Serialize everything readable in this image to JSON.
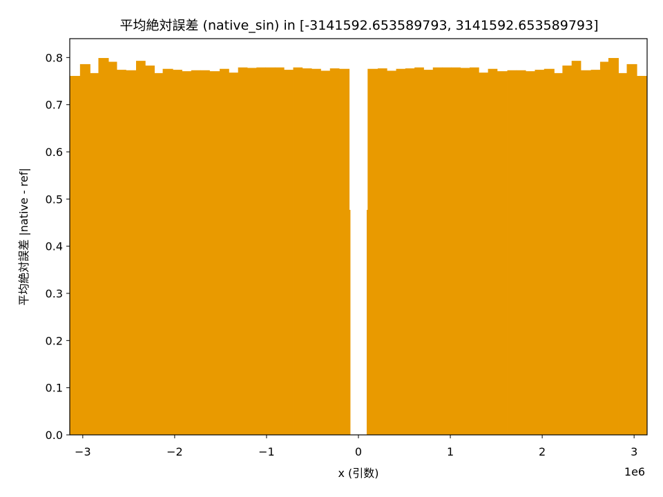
{
  "chart_data": {
    "type": "bar",
    "title": "平均絶対誤差 (native_sin) in [-3141592.653589793, 3141592.653589793]",
    "xlabel": "x (引数)",
    "ylabel": "平均絶対誤差 |native - ref|",
    "x_offset_label": "1e6",
    "bar_color": "#e99a00",
    "xlim": [
      -3.14159,
      3.14159
    ],
    "ylim": [
      0,
      0.84
    ],
    "x_unit_scale": 1000000,
    "x_ticks": [
      -3,
      -2,
      -1,
      0,
      1,
      2,
      3
    ],
    "x_tick_labels": [
      "−3",
      "−2",
      "−1",
      "0",
      "1",
      "2",
      "3"
    ],
    "y_ticks": [
      0.0,
      0.1,
      0.2,
      0.3,
      0.4,
      0.5,
      0.6,
      0.7,
      0.8
    ],
    "y_tick_labels": [
      "0.0",
      "0.1",
      "0.2",
      "0.3",
      "0.4",
      "0.5",
      "0.6",
      "0.7",
      "0.8"
    ],
    "bin_edges": [
      -3.14159,
      -3.03,
      -2.92,
      -2.83,
      -2.72,
      -2.63,
      -2.53,
      -2.42,
      -2.32,
      -2.22,
      -2.13,
      -2.02,
      -1.92,
      -1.82,
      -1.72,
      -1.62,
      -1.51,
      -1.41,
      -1.31,
      -1.21,
      -1.11,
      -1.01,
      -0.91,
      -0.81,
      -0.71,
      -0.61,
      -0.51,
      -0.41,
      -0.31,
      -0.21,
      -0.1,
      -0.09,
      0.09,
      0.1,
      0.21,
      0.31,
      0.41,
      0.51,
      0.61,
      0.71,
      0.81,
      0.91,
      1.01,
      1.11,
      1.21,
      1.31,
      1.41,
      1.51,
      1.62,
      1.72,
      1.82,
      1.92,
      2.02,
      2.13,
      2.22,
      2.32,
      2.42,
      2.53,
      2.63,
      2.72,
      2.83,
      2.92,
      3.03,
      3.14159
    ],
    "values": [
      0.761,
      0.786,
      0.767,
      0.799,
      0.791,
      0.774,
      0.773,
      0.793,
      0.783,
      0.767,
      0.776,
      0.774,
      0.771,
      0.773,
      0.773,
      0.771,
      0.776,
      0.768,
      0.779,
      0.778,
      0.779,
      0.779,
      0.779,
      0.774,
      0.779,
      0.777,
      0.776,
      0.772,
      0.777,
      0.776,
      0.477,
      0.0,
      0.477,
      0.776,
      0.777,
      0.772,
      0.776,
      0.777,
      0.779,
      0.774,
      0.779,
      0.779,
      0.779,
      0.778,
      0.779,
      0.768,
      0.776,
      0.771,
      0.773,
      0.773,
      0.771,
      0.774,
      0.776,
      0.767,
      0.783,
      0.793,
      0.773,
      0.774,
      0.791,
      0.799,
      0.767,
      0.786,
      0.761
    ]
  }
}
